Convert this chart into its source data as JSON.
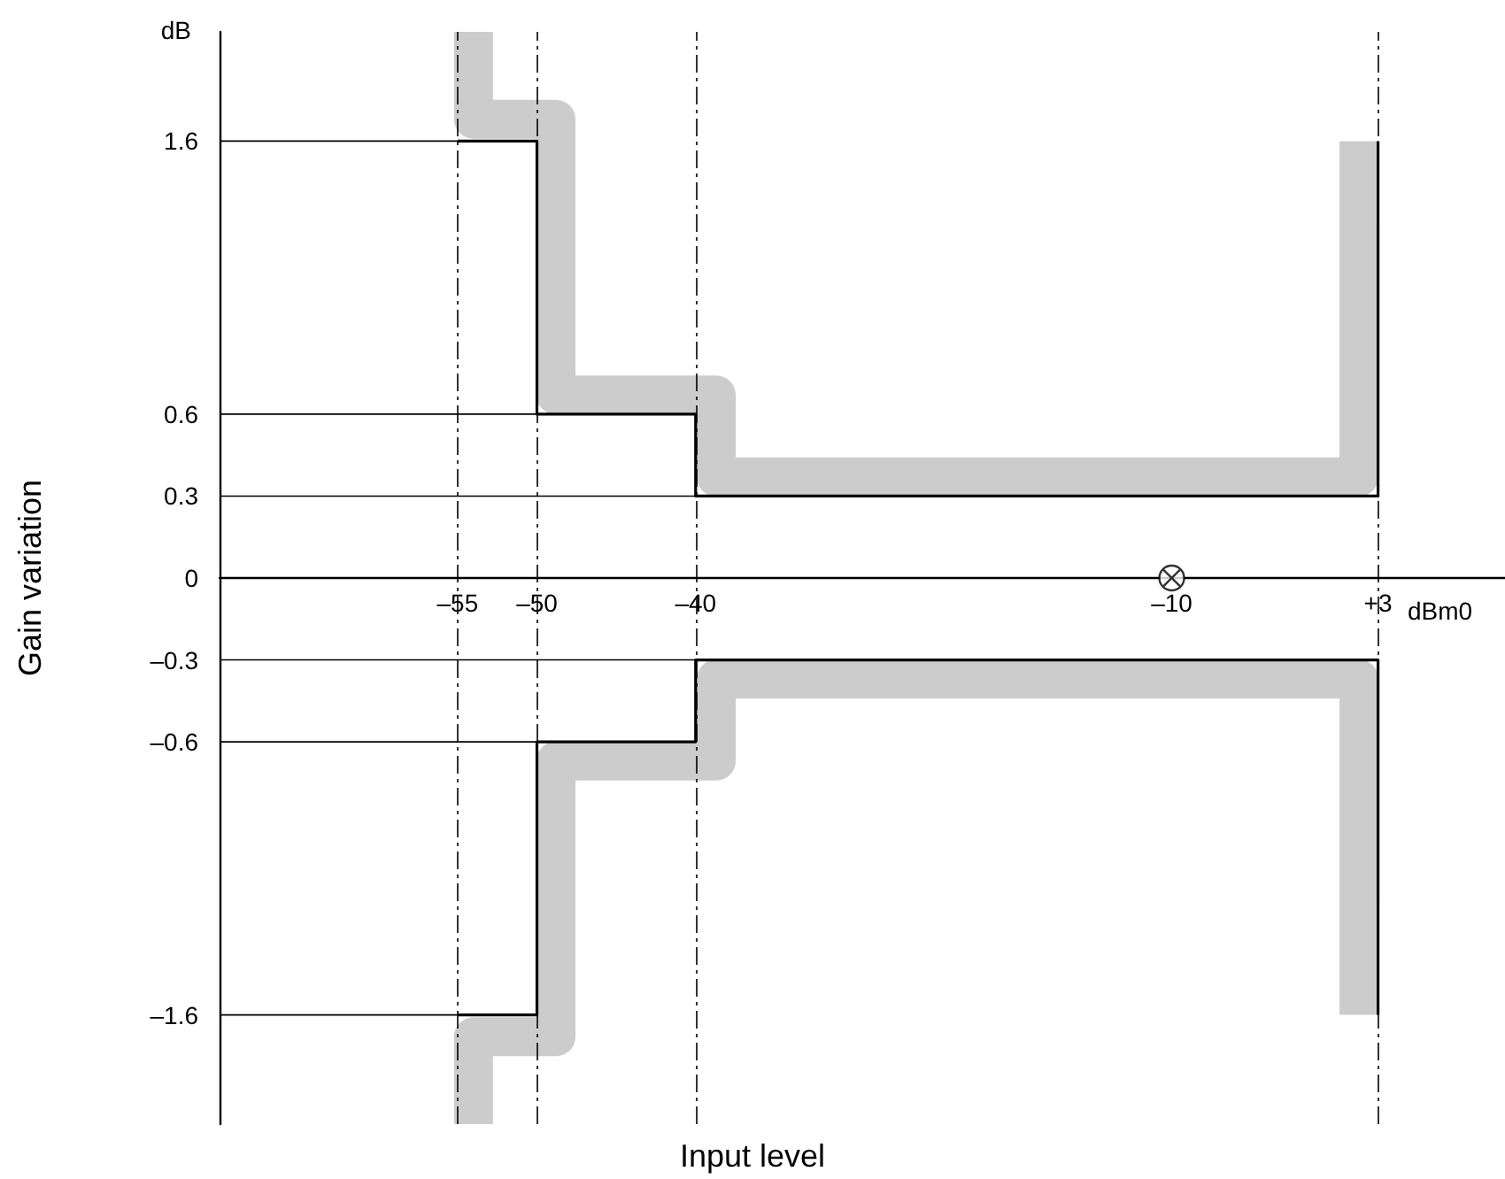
{
  "chart_data": {
    "type": "line",
    "xlabel": "Input level",
    "ylabel": "Gain variation",
    "annotations": [
      "dB",
      "dBm0"
    ],
    "xlim": [
      -70,
      11
    ],
    "ylim": [
      -2,
      2
    ],
    "xticks": [
      {
        "value": -55,
        "label": "–55"
      },
      {
        "value": -50,
        "label": "–50"
      },
      {
        "value": -40,
        "label": "–40"
      },
      {
        "value": -10,
        "label": "–10"
      },
      {
        "value": 3,
        "label": "+3"
      }
    ],
    "yticks": [
      {
        "value": -1.6,
        "label": "–1.6"
      },
      {
        "value": -0.6,
        "label": "–0.6"
      },
      {
        "value": -0.3,
        "label": "–0.3"
      },
      0,
      0.3,
      0.6,
      1.6
    ],
    "grid": false,
    "line_style": "solid",
    "marker": "none",
    "ref_lines": [
      {
        "axis": "x",
        "value": -55,
        "line_style": "dashed",
        "color": "#000000"
      },
      {
        "axis": "x",
        "value": -50,
        "line_style": "dashed",
        "color": "#000000"
      },
      {
        "axis": "x",
        "value": -40,
        "line_style": "dashed",
        "color": "#000000"
      },
      {
        "axis": "x",
        "value": 3,
        "line_style": "dashed",
        "color": "#000000"
      }
    ],
    "series": [
      {
        "color": "#cccccc",
        "x": [
          -54,
          -54,
          -48.8,
          -48.8,
          -38.7,
          -38.7,
          1.8,
          1.8
        ],
        "values": [
          2,
          1.68,
          1.68,
          0.67,
          0.67,
          0.37,
          0.37,
          1.6
        ]
      },
      {
        "color": "#cccccc",
        "x": [
          -54,
          -54,
          -48.8,
          -48.8,
          -38.7,
          -38.7,
          1.8,
          1.8
        ],
        "values": [
          -2,
          -1.68,
          -1.68,
          -0.67,
          -0.67,
          -0.37,
          -0.37,
          -1.6
        ]
      },
      {
        "type": "step",
        "color": "#000000",
        "x": [
          -55,
          -50,
          -40,
          3
        ],
        "values": [
          1.6,
          0.6,
          0.3,
          1.6
        ]
      },
      {
        "type": "step",
        "color": "#000000",
        "x": [
          -55,
          -50,
          -40,
          3
        ],
        "values": [
          -1.6,
          -0.6,
          -0.3,
          -1.6
        ]
      },
      {
        "color": "#000000",
        "x": [
          -70,
          -55
        ],
        "values": [
          1.6,
          1.6
        ]
      },
      {
        "color": "#000000",
        "x": [
          -70,
          -50
        ],
        "values": [
          0.6,
          0.6
        ]
      },
      {
        "color": "#000000",
        "x": [
          -70,
          -40
        ],
        "values": [
          0.3,
          0.3
        ]
      },
      {
        "color": "#000000",
        "x": [
          -70,
          -40
        ],
        "values": [
          -0.3,
          -0.3
        ]
      },
      {
        "color": "#000000",
        "x": [
          -70,
          -50
        ],
        "values": [
          -0.6,
          -0.6
        ]
      },
      {
        "color": "#000000",
        "x": [
          -70,
          -55
        ],
        "values": [
          -1.6,
          -1.6
        ]
      },
      {
        "type": "scatter",
        "color": "#000000",
        "marker": "cross",
        "x": [
          -10
        ],
        "values": [
          0
        ]
      }
    ]
  }
}
